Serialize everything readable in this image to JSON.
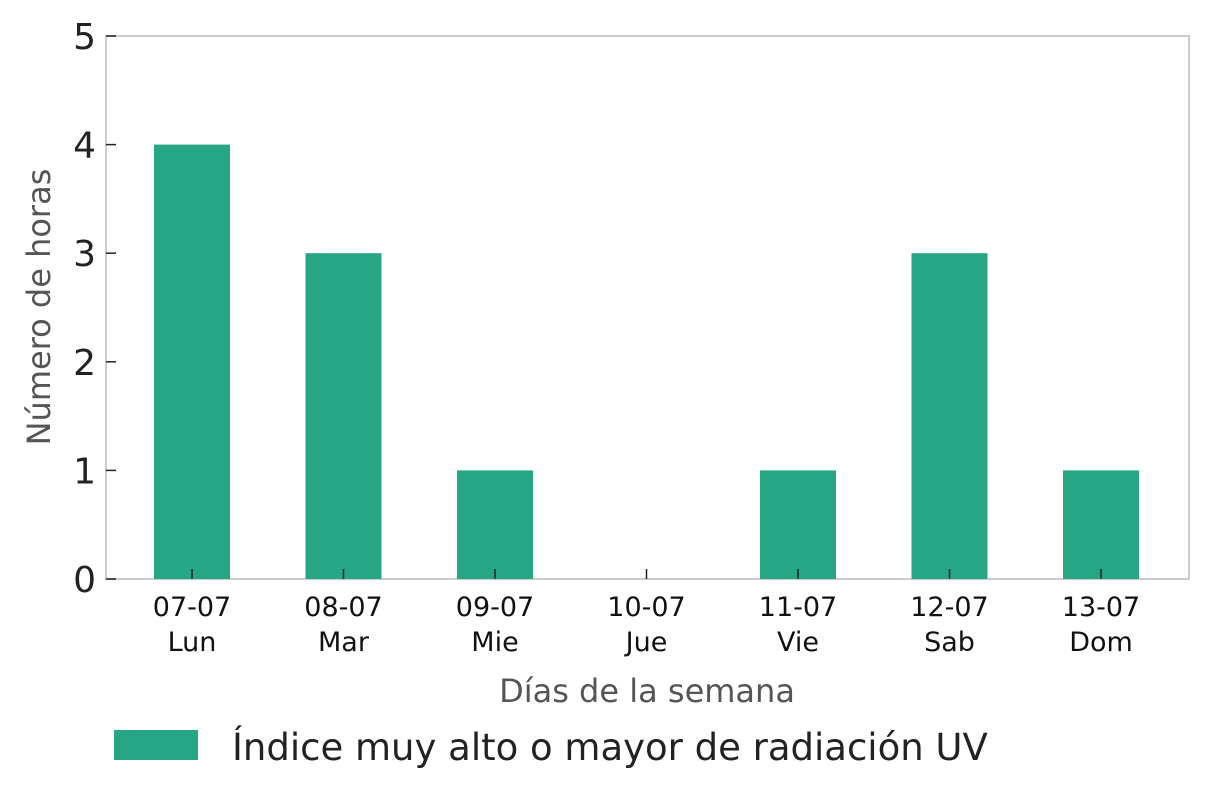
{
  "chart_data": {
    "type": "bar",
    "categories": [
      {
        "date": "07-07",
        "day": "Lun"
      },
      {
        "date": "08-07",
        "day": "Mar"
      },
      {
        "date": "09-07",
        "day": "Mie"
      },
      {
        "date": "10-07",
        "day": "Jue"
      },
      {
        "date": "11-07",
        "day": "Vie"
      },
      {
        "date": "12-07",
        "day": "Sab"
      },
      {
        "date": "13-07",
        "day": "Dom"
      }
    ],
    "series": [
      {
        "name": "Índice muy alto o mayor de radiación UV",
        "values": [
          4,
          3,
          1,
          0,
          1,
          3,
          1
        ],
        "color": "#27a685"
      }
    ],
    "xlabel": "Días de la semana",
    "ylabel": "Número de horas",
    "ylim": [
      0,
      5
    ],
    "yticks": [
      "0",
      "1",
      "2",
      "3",
      "4",
      "5"
    ],
    "grid": false,
    "legend_position": "bottom"
  }
}
